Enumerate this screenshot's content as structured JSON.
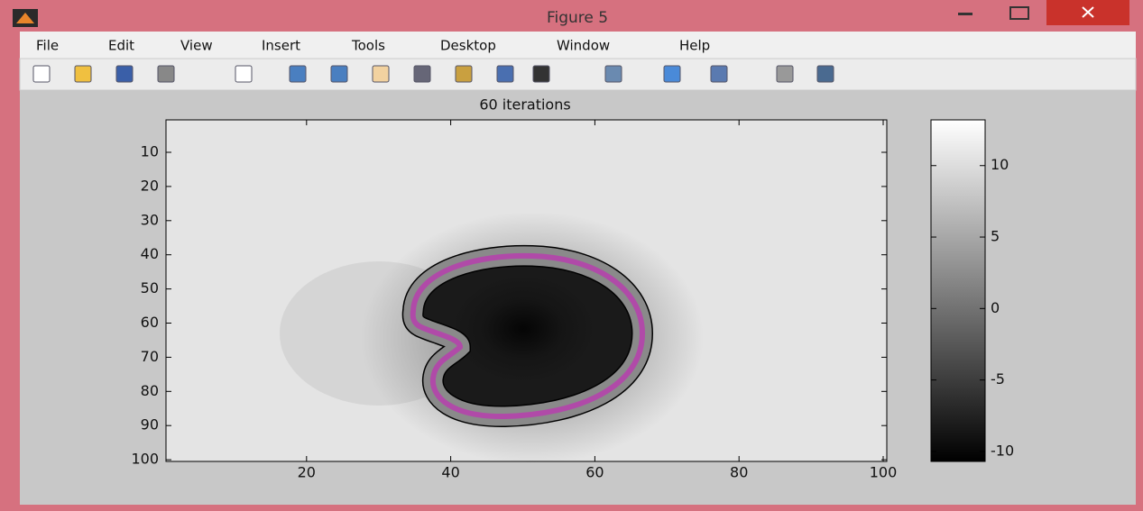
{
  "window": {
    "title": "Figure 5"
  },
  "menu": [
    "File",
    "Edit",
    "View",
    "Insert",
    "Tools",
    "Desktop",
    "Window",
    "Help"
  ],
  "chart_data": {
    "type": "heatmap",
    "title": "60 iterations",
    "xlim": [
      0.5,
      100.5
    ],
    "xticks": [
      20,
      40,
      60,
      80,
      100
    ],
    "ylim": [
      100.5,
      0.5
    ],
    "yticks": [
      10,
      20,
      30,
      40,
      50,
      60,
      70,
      80,
      90,
      100
    ],
    "colorbar": {
      "lim": [
        -10.7,
        13.2
      ],
      "ticks": [
        10,
        5,
        0,
        -5,
        -10
      ]
    },
    "contour_color": "#b04aa8"
  }
}
